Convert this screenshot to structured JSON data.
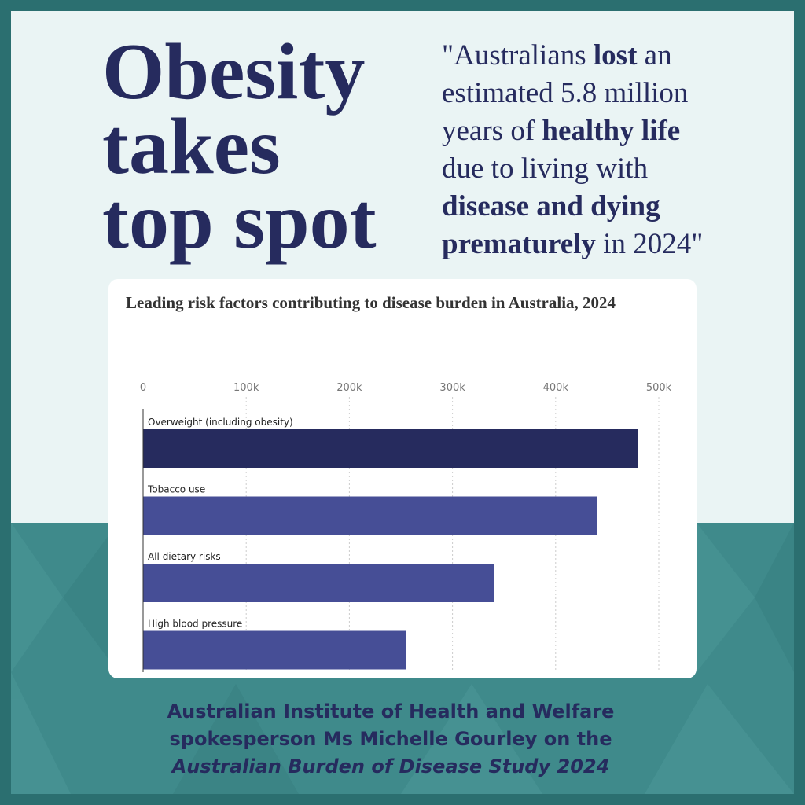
{
  "headline": {
    "lines": [
      "Obesity",
      "takes",
      "top spot"
    ]
  },
  "quote": {
    "lines": [
      [
        {
          "text": "\"Australians ",
          "bold": false
        },
        {
          "text": "lost",
          "bold": true
        },
        {
          "text": " an",
          "bold": false
        }
      ],
      [
        {
          "text": "estimated 5.8 million",
          "bold": false
        }
      ],
      [
        {
          "text": "years of ",
          "bold": false
        },
        {
          "text": "healthy life",
          "bold": true
        }
      ],
      [
        {
          "text": "due to living with",
          "bold": false
        }
      ],
      [
        {
          "text": "disease and dying",
          "bold": true
        }
      ],
      [
        {
          "text": "prematurely",
          "bold": true
        },
        {
          "text": " in 2024\"",
          "bold": false
        }
      ]
    ]
  },
  "chart_data": {
    "type": "bar",
    "orientation": "horizontal",
    "title": "Leading risk factors contributing to disease burden in Australia, 2024",
    "categories": [
      "Overweight (including obesity)",
      "Tobacco use",
      "All dietary risks",
      "High blood pressure"
    ],
    "values": [
      480000,
      440000,
      340000,
      255000
    ],
    "colors": [
      "#262b5e",
      "#464e96",
      "#464e96",
      "#464e96"
    ],
    "xlim": [
      0,
      500000
    ],
    "xticks": [
      0,
      {
        "value": 100000,
        "label": "100k"
      },
      {
        "value": 200000,
        "label": "200k"
      },
      {
        "value": 300000,
        "label": "300k"
      },
      {
        "value": 400000,
        "label": "400k"
      },
      {
        "value": 500000,
        "label": "500k"
      }
    ],
    "grid": true
  },
  "footer": {
    "lines": [
      {
        "text": "Australian Institute of Health and Welfare",
        "italic": false
      },
      {
        "text": "spokesperson Ms Michelle Gourley on the",
        "italic": false
      },
      {
        "text": "Australian Burden of Disease Study 2024",
        "italic": true
      }
    ]
  }
}
